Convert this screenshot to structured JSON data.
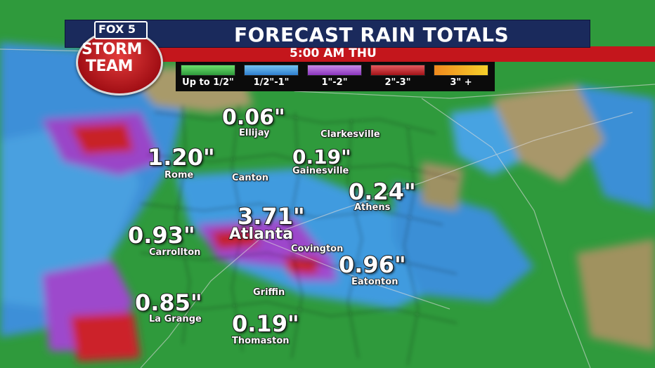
{
  "header": {
    "title": "FORECAST RAIN TOTALS",
    "time": "5:00 AM THU"
  },
  "logo": {
    "network": "FOX 5",
    "line1": "STORM",
    "line2": "TEAM"
  },
  "legend": [
    {
      "label": "Up to 1/2\"",
      "color": "#3fbf3f"
    },
    {
      "label": "1/2\"-1\"",
      "color": "#3fa6e6"
    },
    {
      "label": "1\"-2\"",
      "color": "#a24bd6"
    },
    {
      "label": "2\"-3\"",
      "color": "#c8242a"
    },
    {
      "label": "3\" +",
      "color": "#f08a1e"
    }
  ],
  "locations": {
    "ellijay": {
      "value": "0.06\"",
      "city": "Ellijay"
    },
    "clarkesville": {
      "city": "Clarkesville"
    },
    "rome": {
      "value": "1.20\"",
      "city": "Rome"
    },
    "canton": {
      "city": "Canton"
    },
    "gainesville": {
      "value": "0.19\"",
      "city": "Gainesville"
    },
    "athens": {
      "value": "0.24\"",
      "city": "Athens"
    },
    "atlanta": {
      "value": "3.71\"",
      "city": "Atlanta"
    },
    "carrollton": {
      "value": "0.93\"",
      "city": "Carrollton"
    },
    "covington": {
      "city": "Covington"
    },
    "eatonton": {
      "value": "0.96\"",
      "city": "Eatonton"
    },
    "griffin": {
      "city": "Griffin"
    },
    "lagrange": {
      "value": "0.85\"",
      "city": "La Grange"
    },
    "thomaston": {
      "value": "0.19\"",
      "city": "Thomaston"
    }
  }
}
